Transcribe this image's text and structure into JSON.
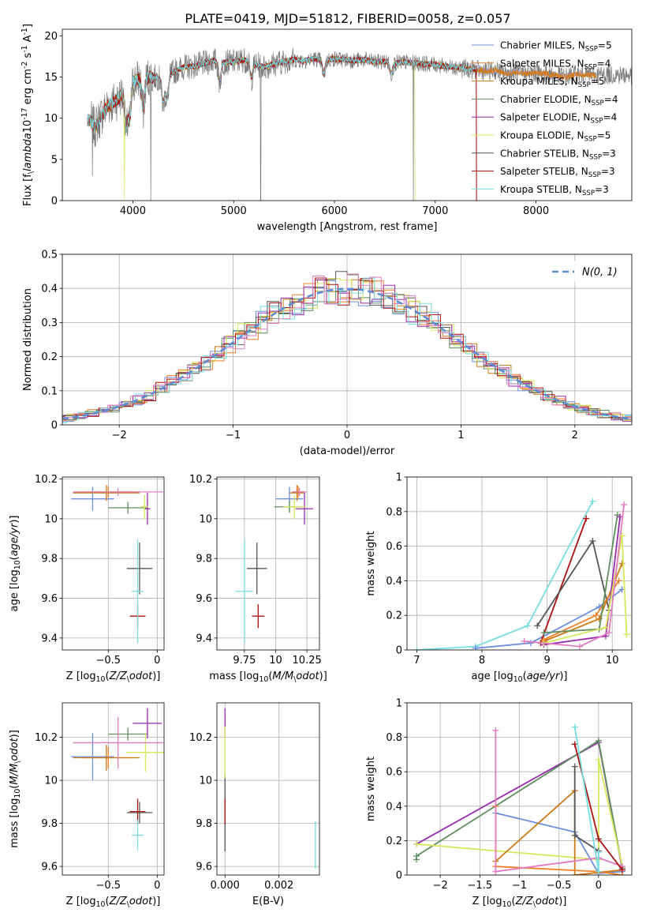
{
  "figure": {
    "title": "PLATE=0419, MJD=51812, FIBERID=0058, z=0.057",
    "palette": [
      "#6b8fe0",
      "#f07f28",
      "#cc7a14",
      "#5e8f5e",
      "#9a2bb0",
      "#d8e85a",
      "#555555",
      "#aa1111",
      "#77dde0",
      "#e27bbf"
    ]
  },
  "chart_data": [
    {
      "id": "spectrum",
      "type": "line",
      "xlabel": "wavelength [Angstrom, rest frame]",
      "ylabel": "Flux [f$_\\lambda$10$^{-17}$ erg cm$^{-2}$ s$^{-1}$ A$^{-1}$]",
      "xlim": [
        3300,
        8950
      ],
      "ylim": [
        0,
        20.8
      ],
      "xticks": [
        4000,
        5000,
        6000,
        7000,
        8000
      ],
      "yticks": [
        0,
        5,
        10,
        15,
        20
      ],
      "grid": false,
      "legend_position": "top-right",
      "data_continuum": {
        "x": [
          3580,
          3620,
          3680,
          3750,
          3820,
          3900,
          3950,
          4000,
          4100,
          4200,
          4300,
          4400,
          4500,
          4600,
          4700,
          4800,
          4900,
          5000,
          5100,
          5200,
          5300,
          5400,
          5500,
          5600,
          5700,
          5800,
          5900,
          6000,
          6100,
          6200,
          6300,
          6400,
          6500,
          6600,
          6700,
          6800,
          6900,
          7000,
          7100,
          7200,
          7300,
          7400,
          7500,
          7600,
          7700,
          7800,
          7900,
          8000,
          8100,
          8200,
          8300,
          8400,
          8500,
          8600,
          8700,
          8800,
          8950
        ],
        "y": [
          9.8,
          8.8,
          10.2,
          11.5,
          12.0,
          13.0,
          13.8,
          14.5,
          14.9,
          15.0,
          14.8,
          15.6,
          16.2,
          16.3,
          16.6,
          17.0,
          16.8,
          16.8,
          17.1,
          16.6,
          16.2,
          16.6,
          16.9,
          17.1,
          17.0,
          17.2,
          17.0,
          17.2,
          17.1,
          17.0,
          17.1,
          16.8,
          16.9,
          16.7,
          16.8,
          16.7,
          16.6,
          16.5,
          16.3,
          16.2,
          16.0,
          15.9,
          15.7,
          15.8,
          15.4,
          15.6,
          15.4,
          15.5,
          15.4,
          15.2,
          15.0,
          15.3,
          15.3,
          15.2,
          15.3,
          15.3,
          15.2
        ]
      },
      "features": [
        {
          "x": 3933,
          "depth": 5.0
        },
        {
          "x": 3968,
          "depth": 4.5
        },
        {
          "x": 4102,
          "depth": 4.0
        },
        {
          "x": 4300,
          "depth": 3.2
        },
        {
          "x": 4340,
          "depth": 3.0
        },
        {
          "x": 4861,
          "depth": 2.5
        },
        {
          "x": 5175,
          "depth": 2.0
        },
        {
          "x": 5893,
          "depth": 1.8
        },
        {
          "x": 6563,
          "depth": 1.5
        }
      ],
      "data_glitches": [
        {
          "x": 3600,
          "y_min": 3.0
        },
        {
          "x": 4178,
          "y_min": 0.0
        },
        {
          "x": 5268,
          "y_min": 0.0
        },
        {
          "x": 6782,
          "y_min": 0.0
        }
      ],
      "model_dropouts": [
        {
          "x": 3915,
          "series": "Kroupa ELODIE, N$_{SSP}$=5"
        },
        {
          "x": 6800,
          "series": "Kroupa ELODIE, N$_{SSP}$=5"
        },
        {
          "x": 7410,
          "series": "Salpeter STELIB, N$_{SSP}$=3"
        }
      ],
      "series": [
        {
          "name": "Chabrier MILES, N$_{SSP}$=5",
          "color": "#6b8fe0",
          "x_range": [
            3550,
            8600
          ]
        },
        {
          "name": "Salpeter MILES, N$_{SSP}$=4",
          "color": "#f07f28",
          "x_range": [
            3550,
            8600
          ]
        },
        {
          "name": "Kroupa MILES, N$_{SSP}$=5",
          "color": "#cc7a14",
          "x_range": [
            3550,
            8600
          ]
        },
        {
          "name": "Chabrier ELODIE, N$_{SSP}$=4",
          "color": "#5e8f5e",
          "x_range": [
            3900,
            6800
          ]
        },
        {
          "name": "Salpeter ELODIE, N$_{SSP}$=4",
          "color": "#9a2bb0",
          "x_range": [
            3900,
            6800
          ]
        },
        {
          "name": "Kroupa ELODIE, N$_{SSP}$=5",
          "color": "#d8e85a",
          "x_range": [
            3900,
            6800
          ]
        },
        {
          "name": "Chabrier STELIB, N$_{SSP}$=3",
          "color": "#555555",
          "x_range": [
            3550,
            7410
          ]
        },
        {
          "name": "Salpeter STELIB, N$_{SSP}$=3",
          "color": "#aa1111",
          "x_range": [
            3550,
            7410
          ]
        },
        {
          "name": "Kroupa STELIB, N$_{SSP}$=3",
          "color": "#77dde0",
          "x_range": [
            3550,
            7410
          ]
        }
      ]
    },
    {
      "id": "residuals",
      "type": "line",
      "xlabel": "(data-model)/error",
      "ylabel": "Normed distribution",
      "xlim": [
        -2.5,
        2.5
      ],
      "ylim": [
        0,
        0.5
      ],
      "xticks": [
        -2,
        -1,
        0,
        1,
        2
      ],
      "yticks": [
        0.0,
        0.1,
        0.2,
        0.3,
        0.4,
        0.5
      ],
      "grid": true,
      "legend_position": "top-right",
      "reference": {
        "name": "$\\mathcal{N}(0,1)$",
        "mean": 0,
        "sigma": 1,
        "color": "#5b8bd6"
      },
      "histogram": {
        "bin_width": 0.1,
        "colors": [
          "#6b8fe0",
          "#f07f28",
          "#cc7a14",
          "#5e8f5e",
          "#9a2bb0",
          "#d8e85a",
          "#555555",
          "#aa1111",
          "#77dde0",
          "#e27bbf"
        ]
      }
    },
    {
      "id": "age-vs-Z",
      "type": "scatter",
      "xlabel": "Z [log$_{10}$($Z/Z_\\odot$)]",
      "ylabel": "age  [log$_{10}$($age/yr$)]",
      "xlim": [
        -0.97,
        0.07
      ],
      "ylim": [
        9.34,
        10.21
      ],
      "xticks": [
        -0.5,
        0.0
      ],
      "yticks": [
        9.4,
        9.6,
        9.8,
        10.0,
        10.2
      ],
      "grid": true,
      "points": [
        {
          "color": "#6b8fe0",
          "x": -0.66,
          "y": 10.1,
          "xerr": 0.22,
          "yerr": 0.06
        },
        {
          "color": "#f07f28",
          "x": -0.5,
          "y": 10.135,
          "xerr": 0.26,
          "yerr": 0.03
        },
        {
          "color": "#cc7a14",
          "x": -0.52,
          "y": 10.13,
          "xerr": 0.34,
          "yerr": 0.04
        },
        {
          "color": "#5e8f5e",
          "x": -0.3,
          "y": 10.055,
          "xerr": 0.2,
          "yerr": 0.03
        },
        {
          "color": "#9a2bb0",
          "x": -0.1,
          "y": 10.05,
          "xerr": 0.03,
          "yerr": 0.08
        },
        {
          "color": "#d8e85a",
          "x": -0.13,
          "y": 10.06,
          "xerr": 0.04,
          "yerr": 0.06
        },
        {
          "color": "#555555",
          "x": -0.18,
          "y": 9.75,
          "xerr": 0.13,
          "yerr": 0.13
        },
        {
          "color": "#aa1111",
          "x": -0.2,
          "y": 9.51,
          "xerr": 0.08,
          "yerr": 0.06
        },
        {
          "color": "#77dde0",
          "x": -0.2,
          "y": 9.635,
          "xerr": 0.06,
          "yerr": 0.26
        },
        {
          "color": "#e27bbf",
          "x": -0.4,
          "y": 10.135,
          "xerr": 0.46,
          "yerr": 0.02
        }
      ]
    },
    {
      "id": "age-vs-mass",
      "type": "scatter",
      "xlabel": "mass [log$_{10}$($M/M_\\odot$)]",
      "ylabel": "",
      "xlim": [
        9.53,
        10.35
      ],
      "ylim": [
        9.34,
        10.21
      ],
      "xticks": [
        9.75,
        10.0,
        10.25
      ],
      "yticks": [
        9.4,
        9.6,
        9.8,
        10.0,
        10.2
      ],
      "grid": true,
      "points": [
        {
          "color": "#6b8fe0",
          "x": 10.11,
          "y": 10.1,
          "xerr": 0.11,
          "yerr": 0.06
        },
        {
          "color": "#f07f28",
          "x": 10.18,
          "y": 10.135,
          "xerr": 0.05,
          "yerr": 0.03
        },
        {
          "color": "#cc7a14",
          "x": 10.17,
          "y": 10.13,
          "xerr": 0.06,
          "yerr": 0.04
        },
        {
          "color": "#5e8f5e",
          "x": 10.11,
          "y": 10.06,
          "xerr": 0.12,
          "yerr": 0.03
        },
        {
          "color": "#9a2bb0",
          "x": 10.23,
          "y": 10.05,
          "xerr": 0.07,
          "yerr": 0.08
        },
        {
          "color": "#d8e85a",
          "x": 10.15,
          "y": 10.06,
          "xerr": 0.09,
          "yerr": 0.06
        },
        {
          "color": "#555555",
          "x": 9.85,
          "y": 9.75,
          "xerr": 0.08,
          "yerr": 0.13
        },
        {
          "color": "#aa1111",
          "x": 9.86,
          "y": 9.51,
          "xerr": 0.05,
          "yerr": 0.06
        },
        {
          "color": "#77dde0",
          "x": 9.75,
          "y": 9.635,
          "xerr": 0.07,
          "yerr": 0.26
        },
        {
          "color": "#e27bbf",
          "x": 10.19,
          "y": 10.135,
          "xerr": 0.06,
          "yerr": 0.02
        }
      ]
    },
    {
      "id": "weight-vs-age",
      "type": "line",
      "xlabel": "age  [log$_{10}$($age/yr$)]",
      "ylabel": "mass weight",
      "xlim": [
        6.85,
        10.3
      ],
      "ylim": [
        0,
        1.0
      ],
      "xticks": [
        7,
        8,
        9,
        10
      ],
      "yticks": [
        0.0,
        0.2,
        0.4,
        0.6,
        0.8,
        1.0
      ],
      "grid": true,
      "series": [
        {
          "color": "#77dde0",
          "x": [
            7.0,
            7.9,
            8.7,
            9.7
          ],
          "y": [
            0.0,
            0.02,
            0.14,
            0.86
          ]
        },
        {
          "color": "#6b8fe0",
          "x": [
            7.9,
            8.75,
            9.8,
            10.15
          ],
          "y": [
            0.01,
            0.04,
            0.25,
            0.35
          ]
        },
        {
          "color": "#aa1111",
          "x": [
            8.9,
            9.6
          ],
          "y": [
            0.04,
            0.76
          ]
        },
        {
          "color": "#555555",
          "x": [
            8.85,
            9.7,
            9.95
          ],
          "y": [
            0.14,
            0.63,
            0.23
          ]
        },
        {
          "color": "#cc7a14",
          "x": [
            8.95,
            9.8,
            10.15
          ],
          "y": [
            0.05,
            0.18,
            0.5
          ]
        },
        {
          "color": "#f07f28",
          "x": [
            8.95,
            9.75,
            10.1
          ],
          "y": [
            0.06,
            0.2,
            0.4
          ]
        },
        {
          "color": "#5e8f5e",
          "x": [
            8.95,
            9.8,
            10.08
          ],
          "y": [
            0.1,
            0.12,
            0.78
          ]
        },
        {
          "color": "#9a2bb0",
          "x": [
            8.95,
            9.9,
            10.12
          ],
          "y": [
            0.03,
            0.08,
            0.77
          ]
        },
        {
          "color": "#d8e85a",
          "x": [
            8.95,
            9.9,
            10.15
          ],
          "y": [
            0.04,
            0.13,
            0.66
          ]
        },
        {
          "color": "#e27bbf",
          "x": [
            8.65,
            9.5,
            9.95,
            10.18
          ],
          "y": [
            0.05,
            0.02,
            0.1,
            0.84
          ]
        },
        {
          "color": "#d8e85a",
          "x": [
            10.15,
            10.22
          ],
          "y": [
            0.66,
            0.09
          ]
        }
      ]
    },
    {
      "id": "mass-vs-Z",
      "type": "scatter",
      "xlabel": "Z [log$_{10}$($Z/Z_\\odot$)]",
      "ylabel": "mass [log$_{10}$($M/M_\\odot$)]",
      "xlim": [
        -0.97,
        0.07
      ],
      "ylim": [
        9.56,
        10.36
      ],
      "xticks": [
        -0.5,
        0.0
      ],
      "yticks": [
        9.6,
        9.8,
        10.0,
        10.2
      ],
      "grid": true,
      "points": [
        {
          "color": "#6b8fe0",
          "x": -0.66,
          "y": 10.11,
          "xerr": 0.22,
          "yerr": 0.11
        },
        {
          "color": "#f07f28",
          "x": -0.5,
          "y": 10.105,
          "xerr": 0.26,
          "yerr": 0.05
        },
        {
          "color": "#cc7a14",
          "x": -0.52,
          "y": 10.105,
          "xerr": 0.34,
          "yerr": 0.06
        },
        {
          "color": "#5e8f5e",
          "x": -0.3,
          "y": 10.215,
          "xerr": 0.2,
          "yerr": 0.03
        },
        {
          "color": "#9a2bb0",
          "x": -0.1,
          "y": 10.265,
          "xerr": 0.15,
          "yerr": 0.07
        },
        {
          "color": "#d8e85a",
          "x": -0.12,
          "y": 10.13,
          "xerr": 0.2,
          "yerr": 0.09
        },
        {
          "color": "#555555",
          "x": -0.18,
          "y": 9.85,
          "xerr": 0.13,
          "yerr": 0.05
        },
        {
          "color": "#aa1111",
          "x": -0.2,
          "y": 9.855,
          "xerr": 0.08,
          "yerr": 0.06
        },
        {
          "color": "#77dde0",
          "x": -0.2,
          "y": 9.745,
          "xerr": 0.06,
          "yerr": 0.07
        },
        {
          "color": "#e27bbf",
          "x": -0.4,
          "y": 10.175,
          "xerr": 0.46,
          "yerr": 0.12
        }
      ]
    },
    {
      "id": "mass-vs-EBV",
      "type": "scatter",
      "xlabel": "E(B-V)",
      "ylabel": "",
      "xlim": [
        -0.0003,
        0.0035
      ],
      "ylim": [
        9.56,
        10.36
      ],
      "xticks": [
        0.0,
        0.002
      ],
      "xtick_labels": [
        "0.000",
        "0.002"
      ],
      "yticks": [
        9.6,
        9.8,
        10.0,
        10.2
      ],
      "grid": true,
      "points": [
        {
          "color": "#555555",
          "x": 0.0,
          "y": 9.85,
          "xerr": 0.0,
          "yerr": 0.18
        },
        {
          "color": "#aa1111",
          "x": 0.0,
          "y": 9.855,
          "xerr": 0.0,
          "yerr": 0.06
        },
        {
          "color": "#9a2bb0",
          "x": 0.0,
          "y": 10.265,
          "xerr": 0.0,
          "yerr": 0.07
        },
        {
          "color": "#d8e85a",
          "x": 0.0,
          "y": 10.13,
          "xerr": 0.0,
          "yerr": 0.12
        },
        {
          "color": "#77dde0",
          "x": 0.00335,
          "y": 9.7,
          "xerr": 0.0,
          "yerr": 0.11
        }
      ]
    },
    {
      "id": "weight-vs-Z",
      "type": "line",
      "xlabel": "Z [log$_{10}$($Z/Z_\\odot$)]",
      "ylabel": "mass weight",
      "xlim": [
        -2.42,
        0.42
      ],
      "ylim": [
        0,
        1.0
      ],
      "xticks": [
        -2.0,
        -1.5,
        -1.0,
        -0.5,
        0.0
      ],
      "yticks": [
        0.0,
        0.2,
        0.4,
        0.6,
        0.8,
        1.0
      ],
      "grid": true,
      "series": [
        {
          "color": "#9a2bb0",
          "x": [
            -2.3,
            0.0,
            0.3
          ],
          "y": [
            0.18,
            0.77,
            0.03
          ]
        },
        {
          "color": "#5e8f5e",
          "x": [
            -2.3,
            -2.3,
            0.0,
            0.3
          ],
          "y": [
            0.09,
            0.11,
            0.78,
            0.04
          ]
        },
        {
          "color": "#d8e85a",
          "x": [
            -2.3,
            0.0,
            0.0,
            0.3
          ],
          "y": [
            0.18,
            0.09,
            0.67,
            0.05
          ]
        },
        {
          "color": "#6b8fe0",
          "x": [
            -1.3,
            -0.3,
            0.0,
            0.3
          ],
          "y": [
            0.36,
            0.25,
            0.01,
            0.02
          ]
        },
        {
          "color": "#cc7a14",
          "x": [
            -1.3,
            -0.3,
            -0.3,
            0.3
          ],
          "y": [
            0.08,
            0.49,
            0.0,
            0.03
          ]
        },
        {
          "color": "#f07f28",
          "x": [
            -1.3,
            -1.3,
            0.0,
            0.3
          ],
          "y": [
            0.4,
            0.05,
            0.02,
            0.0
          ]
        },
        {
          "color": "#e27bbf",
          "x": [
            -1.3,
            -1.3,
            0.0,
            0.3
          ],
          "y": [
            0.84,
            0.02,
            0.1,
            0.05
          ]
        },
        {
          "color": "#aa1111",
          "x": [
            -0.3,
            0.0,
            0.3
          ],
          "y": [
            0.76,
            0.21,
            0.03
          ]
        },
        {
          "color": "#555555",
          "x": [
            -0.3,
            -0.3,
            0.0
          ],
          "y": [
            0.63,
            0.23,
            0.14
          ]
        },
        {
          "color": "#77dde0",
          "x": [
            -0.3,
            0.0,
            0.0
          ],
          "y": [
            0.86,
            0.02,
            0.13
          ]
        }
      ]
    }
  ]
}
